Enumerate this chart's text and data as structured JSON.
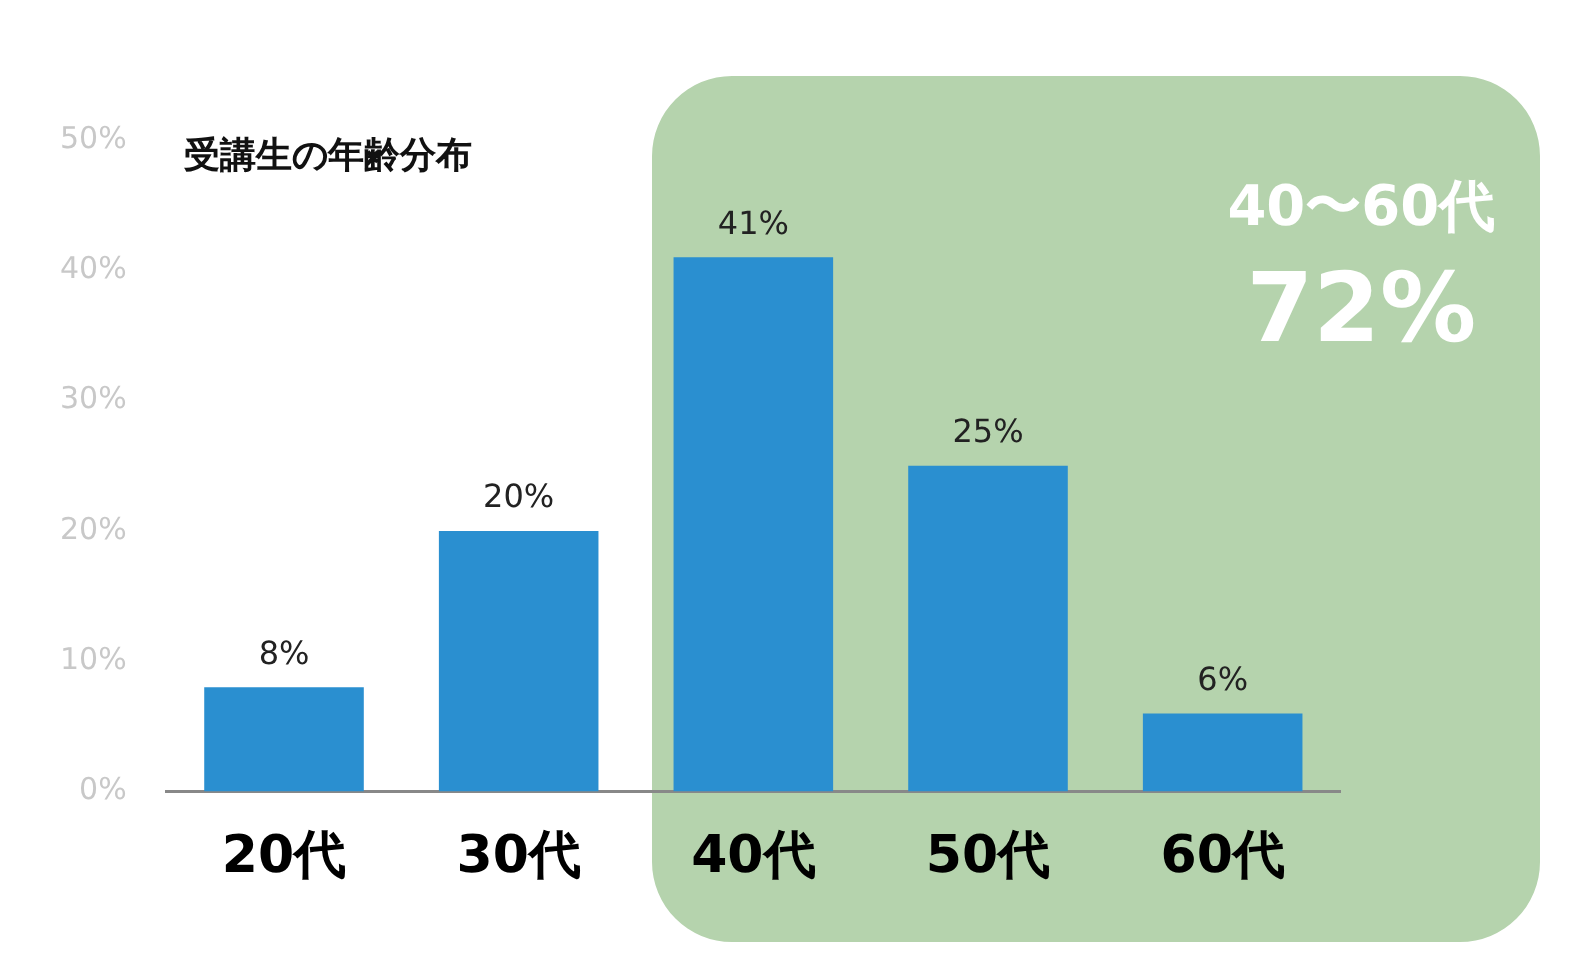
{
  "chart_data": {
    "type": "bar",
    "title": "受講生の年齢分布",
    "categories": [
      "20代",
      "30代",
      "40代",
      "50代",
      "60代"
    ],
    "values": [
      8,
      20,
      41,
      25,
      6
    ],
    "color": "#2a8fd0",
    "ylim": [
      0,
      50
    ],
    "yticks": [
      {
        "value": 0,
        "label": "0%"
      },
      {
        "value": 10,
        "label": "10%"
      },
      {
        "value": 20,
        "label": "20%"
      },
      {
        "value": 30,
        "label": "30%"
      },
      {
        "value": 40,
        "label": "40%"
      },
      {
        "value": 50,
        "label": "50%"
      }
    ],
    "value_labels": [
      "8%",
      "20%",
      "41%",
      "25%",
      "6%"
    ],
    "grid": false,
    "legend": false,
    "bands": [
      {
        "axis": "x",
        "from": "40代",
        "to": "60代",
        "label": "40〜60代",
        "color": "#b5d3ad"
      }
    ],
    "annotations": [
      "72%"
    ]
  }
}
